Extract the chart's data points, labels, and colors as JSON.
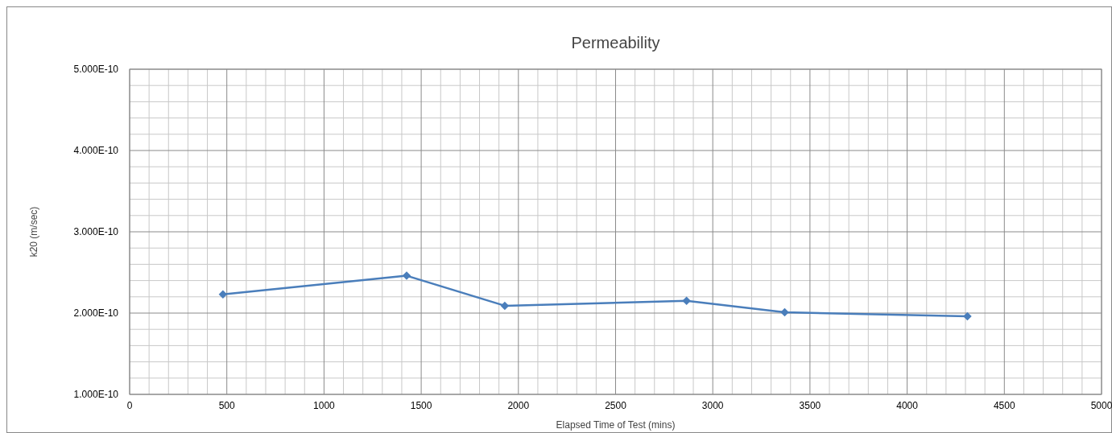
{
  "chart_data": {
    "type": "line",
    "title": "Permeability",
    "xlabel": "Elapsed Time  of Test (mins)",
    "ylabel": "k20  (m/sec)",
    "series": [
      {
        "color": "#4a7ebb",
        "x": [
          480,
          1425,
          1930,
          2865,
          3370,
          4310
        ],
        "values": [
          2.23e-10,
          2.46e-10,
          2.09e-10,
          2.15e-10,
          2.01e-10,
          1.96e-10
        ]
      }
    ],
    "xlim": [
      0,
      5000
    ],
    "xticks": [
      0,
      500,
      1000,
      1500,
      2000,
      2500,
      3000,
      3500,
      4000,
      4500,
      5000
    ],
    "ylim": [
      1e-10,
      5e-10
    ],
    "yticks": [
      {
        "value": 1e-10,
        "label": "1.000E-10"
      },
      {
        "value": 2e-10,
        "label": "2.000E-10"
      },
      {
        "value": 3e-10,
        "label": "3.000E-10"
      },
      {
        "value": 4e-10,
        "label": "4.000E-10"
      },
      {
        "value": 5e-10,
        "label": "5.000E-10"
      }
    ],
    "grid": true,
    "marker": "diamond",
    "line_style": "solid"
  }
}
